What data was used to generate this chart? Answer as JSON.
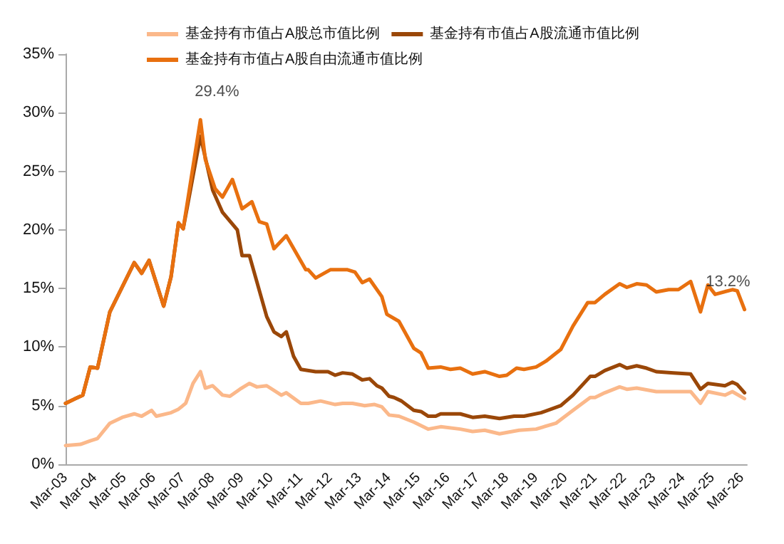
{
  "chart_data": {
    "type": "line",
    "legend": "top",
    "grid": false,
    "marker": "none",
    "line_style": "solid",
    "xlim": [
      "2003-03",
      "2026-05"
    ],
    "xticks": [
      {
        "value": "2003-03",
        "label": "Mar-03"
      },
      {
        "value": "2004-03",
        "label": "Mar-04"
      },
      {
        "value": "2005-03",
        "label": "Mar-05"
      },
      {
        "value": "2006-03",
        "label": "Mar-06"
      },
      {
        "value": "2007-03",
        "label": "Mar-07"
      },
      {
        "value": "2008-03",
        "label": "Mar-08"
      },
      {
        "value": "2009-03",
        "label": "Mar-09"
      },
      {
        "value": "2010-03",
        "label": "Mar-10"
      },
      {
        "value": "2011-03",
        "label": "Mar-11"
      },
      {
        "value": "2012-03",
        "label": "Mar-12"
      },
      {
        "value": "2013-03",
        "label": "Mar-13"
      },
      {
        "value": "2014-03",
        "label": "Mar-14"
      },
      {
        "value": "2015-03",
        "label": "Mar-15"
      },
      {
        "value": "2016-03",
        "label": "Mar-16"
      },
      {
        "value": "2017-03",
        "label": "Mar-17"
      },
      {
        "value": "2018-03",
        "label": "Mar-18"
      },
      {
        "value": "2019-03",
        "label": "Mar-19"
      },
      {
        "value": "2020-03",
        "label": "Mar-20"
      },
      {
        "value": "2021-03",
        "label": "Mar-21"
      },
      {
        "value": "2022-03",
        "label": "Mar-22"
      },
      {
        "value": "2023-03",
        "label": "Mar-23"
      },
      {
        "value": "2024-03",
        "label": "Mar-24"
      },
      {
        "value": "2025-03",
        "label": "Mar-25"
      },
      {
        "value": "2026-03",
        "label": "Mar-26"
      }
    ],
    "ylim": [
      0,
      35
    ],
    "yticks": [
      {
        "value": 0,
        "label": "0%"
      },
      {
        "value": 5,
        "label": "5%"
      },
      {
        "value": 10,
        "label": "10%"
      },
      {
        "value": 15,
        "label": "15%"
      },
      {
        "value": 20,
        "label": "20%"
      },
      {
        "value": 25,
        "label": "25%"
      },
      {
        "value": 30,
        "label": "30%"
      },
      {
        "value": 35,
        "label": "35%"
      }
    ],
    "annotations": [
      {
        "text": "29.4%",
        "x": "2007-10",
        "y": 29.4
      },
      {
        "text": "13.2%",
        "x": "2026-04",
        "y": 13.2
      }
    ],
    "series": [
      {
        "name": "基金持有市值占A股总市值比例",
        "color": "#fbb88a",
        "x": [
          "2003-03",
          "2003-09",
          "2004-01",
          "2004-04",
          "2004-09",
          "2005-02",
          "2005-07",
          "2005-10",
          "2006-02",
          "2006-04",
          "2006-10",
          "2007-01",
          "2007-04",
          "2007-07",
          "2007-10",
          "2007-12",
          "2008-03",
          "2008-07",
          "2008-10",
          "2009-02",
          "2009-06",
          "2009-09",
          "2010-01",
          "2010-07",
          "2010-09",
          "2011-03",
          "2011-06",
          "2011-11",
          "2012-05",
          "2012-08",
          "2012-12",
          "2013-05",
          "2013-09",
          "2013-12",
          "2014-03",
          "2014-07",
          "2015-01",
          "2015-07",
          "2015-12",
          "2016-08",
          "2017-01",
          "2017-06",
          "2017-12",
          "2018-08",
          "2019-03",
          "2019-11",
          "2020-06",
          "2021-01",
          "2021-03",
          "2021-07",
          "2022-01",
          "2022-04",
          "2022-08",
          "2023-04",
          "2024-06",
          "2024-10",
          "2025-01",
          "2025-08",
          "2025-11",
          "2026-04"
        ],
        "values": [
          1.6,
          1.7,
          2.0,
          2.2,
          3.5,
          4.0,
          4.3,
          4.1,
          4.6,
          4.1,
          4.4,
          4.7,
          5.2,
          6.9,
          7.9,
          6.5,
          6.7,
          5.9,
          5.8,
          6.4,
          6.9,
          6.6,
          6.7,
          5.9,
          6.1,
          5.2,
          5.2,
          5.4,
          5.1,
          5.2,
          5.2,
          5.0,
          5.1,
          4.9,
          4.2,
          4.1,
          3.6,
          3.0,
          3.2,
          3.0,
          2.8,
          2.9,
          2.6,
          2.9,
          3.0,
          3.5,
          4.6,
          5.7,
          5.7,
          6.1,
          6.6,
          6.4,
          6.5,
          6.2,
          6.2,
          5.2,
          6.2,
          5.9,
          6.2,
          5.6
        ]
      },
      {
        "name": "基金持有市值占A股流通市值比例",
        "color": "#9a4708",
        "x": [
          "2003-03",
          "2003-07",
          "2003-10",
          "2004-01",
          "2004-04",
          "2004-09",
          "2005-07",
          "2005-10",
          "2006-01",
          "2006-07",
          "2006-10",
          "2007-01",
          "2007-03",
          "2007-10",
          "2008-03",
          "2008-07",
          "2009-01",
          "2009-03",
          "2009-06",
          "2010-01",
          "2010-04",
          "2010-07",
          "2010-09",
          "2010-12",
          "2011-03",
          "2011-09",
          "2012-02",
          "2012-05",
          "2012-08",
          "2012-12",
          "2013-04",
          "2013-07",
          "2013-10",
          "2013-12",
          "2014-03",
          "2014-05",
          "2014-08",
          "2015-01",
          "2015-04",
          "2015-07",
          "2015-10",
          "2015-12",
          "2016-08",
          "2017-01",
          "2017-06",
          "2017-12",
          "2018-06",
          "2018-10",
          "2019-05",
          "2020-01",
          "2020-06",
          "2021-01",
          "2021-03",
          "2021-07",
          "2022-01",
          "2022-04",
          "2022-08",
          "2022-12",
          "2023-04",
          "2023-11",
          "2024-06",
          "2024-10",
          "2025-01",
          "2025-08",
          "2025-11",
          "2026-01",
          "2026-04"
        ],
        "values": [
          5.2,
          5.6,
          5.9,
          8.3,
          8.2,
          13.0,
          17.2,
          16.3,
          17.4,
          13.5,
          16.0,
          20.6,
          20.1,
          28.0,
          23.4,
          21.5,
          20.0,
          17.8,
          17.8,
          12.6,
          11.3,
          10.9,
          11.3,
          9.2,
          8.1,
          7.9,
          7.9,
          7.6,
          7.8,
          7.7,
          7.2,
          7.3,
          6.7,
          6.5,
          5.8,
          5.7,
          5.4,
          4.6,
          4.5,
          4.1,
          4.1,
          4.3,
          4.3,
          4.0,
          4.1,
          3.9,
          4.1,
          4.1,
          4.4,
          5.0,
          5.9,
          7.5,
          7.5,
          8.0,
          8.5,
          8.2,
          8.4,
          8.2,
          7.9,
          7.8,
          7.7,
          6.4,
          6.9,
          6.7,
          7.0,
          6.8,
          6.1
        ]
      },
      {
        "name": "基金持有市值占A股自由流通市值比例",
        "color": "#e8700f",
        "x": [
          "2003-03",
          "2003-07",
          "2003-10",
          "2004-01",
          "2004-04",
          "2004-09",
          "2005-07",
          "2005-10",
          "2006-01",
          "2006-07",
          "2006-10",
          "2007-01",
          "2007-03",
          "2007-10",
          "2007-12",
          "2008-04",
          "2008-07",
          "2008-11",
          "2009-03",
          "2009-07",
          "2009-10",
          "2010-01",
          "2010-04",
          "2010-09",
          "2011-05",
          "2011-06",
          "2011-09",
          "2012-03",
          "2012-10",
          "2013-01",
          "2013-04",
          "2013-07",
          "2013-12",
          "2014-02",
          "2014-07",
          "2015-01",
          "2015-04",
          "2015-07",
          "2015-12",
          "2016-04",
          "2016-08",
          "2017-01",
          "2017-06",
          "2017-12",
          "2018-03",
          "2018-07",
          "2018-10",
          "2019-03",
          "2019-07",
          "2020-01",
          "2020-06",
          "2020-12",
          "2021-03",
          "2021-07",
          "2022-01",
          "2022-04",
          "2022-08",
          "2022-12",
          "2023-04",
          "2023-09",
          "2024-01",
          "2024-06",
          "2024-10",
          "2025-01",
          "2025-04",
          "2025-11",
          "2026-01",
          "2026-04"
        ],
        "values": [
          5.2,
          5.6,
          5.9,
          8.3,
          8.2,
          13.0,
          17.2,
          16.3,
          17.4,
          13.5,
          16.0,
          20.6,
          20.1,
          29.4,
          26.0,
          23.5,
          22.8,
          24.3,
          21.8,
          22.4,
          20.7,
          20.5,
          18.4,
          19.5,
          16.6,
          16.6,
          15.9,
          16.6,
          16.6,
          16.4,
          15.5,
          15.8,
          14.3,
          12.8,
          12.2,
          9.9,
          9.5,
          8.2,
          8.3,
          8.1,
          8.2,
          7.7,
          7.9,
          7.5,
          7.6,
          8.2,
          8.1,
          8.3,
          8.8,
          9.8,
          11.8,
          13.8,
          13.8,
          14.5,
          15.4,
          15.1,
          15.4,
          15.3,
          14.7,
          14.9,
          14.9,
          15.6,
          13.0,
          15.3,
          14.5,
          14.9,
          14.8,
          13.2
        ]
      }
    ]
  }
}
